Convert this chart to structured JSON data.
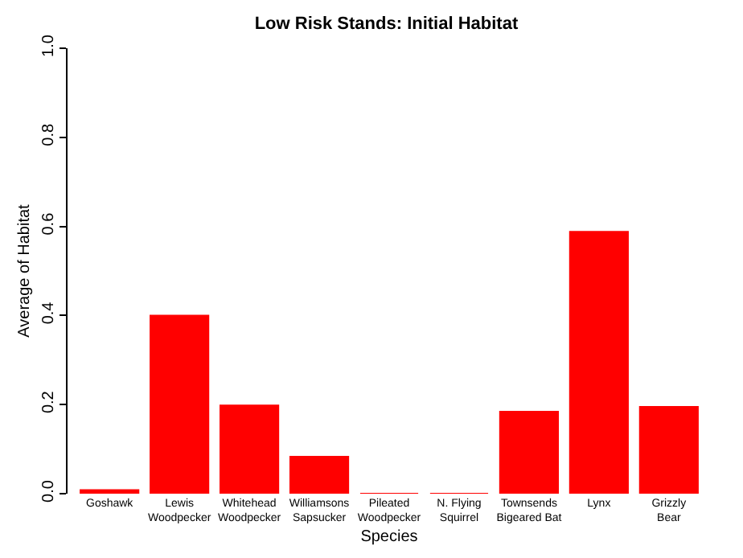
{
  "chart_data": {
    "type": "bar",
    "title": "Low Risk Stands: Initial Habitat",
    "xlabel": "Species",
    "ylabel": "Average of Habitat",
    "categories": [
      "Goshawk",
      "Lewis\nWoodpecker",
      "Whitehead\nWoodpecker",
      "Williamsons\nSapsucker",
      "Pileated\nWoodpecker",
      "N. Flying\nSquirrel",
      "Townsends\nBigeared Bat",
      "Lynx",
      "Grizzly\nBear"
    ],
    "values": [
      0.008,
      0.4,
      0.198,
      0.083,
      0,
      0,
      0.184,
      0.588,
      0.195
    ],
    "color": "#ff0000",
    "ylim": [
      0,
      1
    ],
    "yticks": [
      {
        "value": 0,
        "label": "0.0"
      },
      {
        "value": 0.2,
        "label": "0.2"
      },
      {
        "value": 0.4,
        "label": "0.4"
      },
      {
        "value": 0.6,
        "label": "0.6"
      },
      {
        "value": 0.8,
        "label": "0.8"
      },
      {
        "value": 1,
        "label": "1.0"
      }
    ],
    "grid": false
  }
}
